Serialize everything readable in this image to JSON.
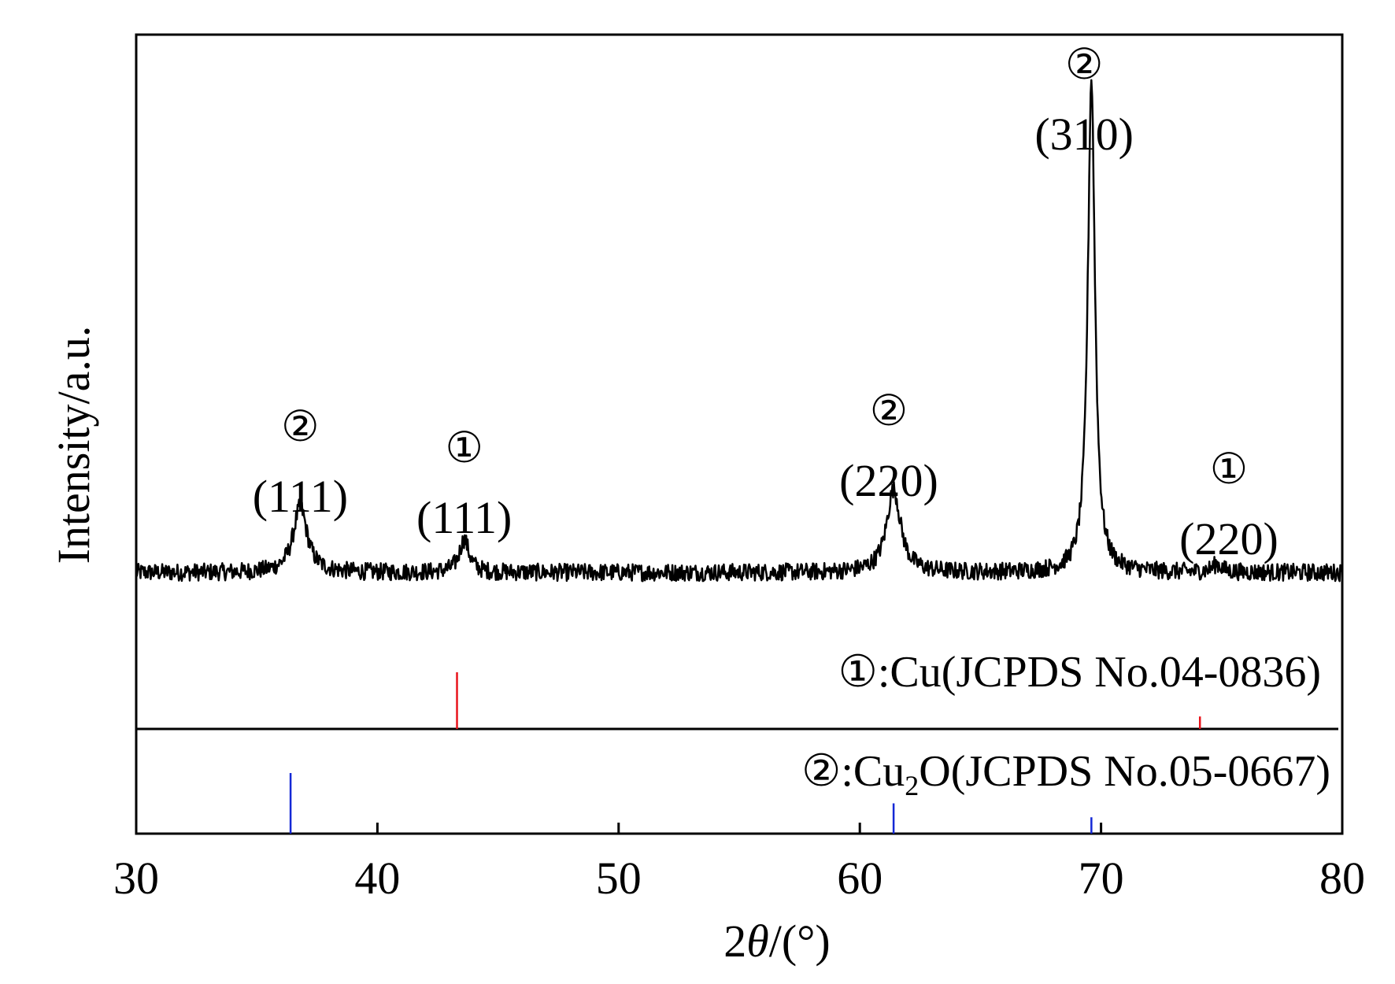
{
  "chart_data": {
    "type": "line",
    "xlabel_prefix": "2",
    "xlabel_theta": "θ",
    "xlabel_suffix": "/(°)",
    "ylabel": "Intensity/a.u.",
    "xlim": [
      30,
      80
    ],
    "xticks": [
      "30",
      "40",
      "50",
      "60",
      "70",
      "80"
    ],
    "ytick_labels": "none",
    "grid": false,
    "pattern": {
      "baseline": 1.0,
      "noise_amplitude": 0.45,
      "peaks": [
        {
          "x": 36.8,
          "height": 3.4,
          "width": 0.35
        },
        {
          "x": 43.6,
          "height": 1.7,
          "width": 0.25
        },
        {
          "x": 61.4,
          "height": 4.3,
          "width": 0.35
        },
        {
          "x": 69.6,
          "height": 25.5,
          "width": 0.18
        },
        {
          "x": 74.8,
          "height": 0.4,
          "width": 0.25
        }
      ],
      "ylim": [
        0,
        28
      ]
    },
    "peak_labels": [
      {
        "phase": "②",
        "hkl": "(111)",
        "x": 36.8
      },
      {
        "phase": "①",
        "hkl": "(111)",
        "x": 43.6
      },
      {
        "phase": "②",
        "hkl": "(220)",
        "x": 61.2
      },
      {
        "phase": "②",
        "hkl": "(310)",
        "x": 69.3
      },
      {
        "phase": "①",
        "hkl": "(220)",
        "x": 75.3
      }
    ],
    "references": [
      {
        "symbol": "①",
        "label_main": ":Cu(JCPDS No.04-0836)",
        "color": "#e8131b",
        "lines": [
          {
            "x": 43.3,
            "intensity": 1.0
          },
          {
            "x": 74.1,
            "intensity": 0.22
          }
        ]
      },
      {
        "symbol": "②",
        "label_pre": ":Cu",
        "label_sub": "2",
        "label_post": "O(JCPDS No.05-0667)",
        "color": "#1428d6",
        "lines": [
          {
            "x": 36.4,
            "intensity": 1.0
          },
          {
            "x": 61.4,
            "intensity": 0.5
          },
          {
            "x": 69.6,
            "intensity": 0.27
          }
        ]
      }
    ]
  },
  "colors": {
    "pattern": "#000000",
    "axes": "#000000"
  }
}
